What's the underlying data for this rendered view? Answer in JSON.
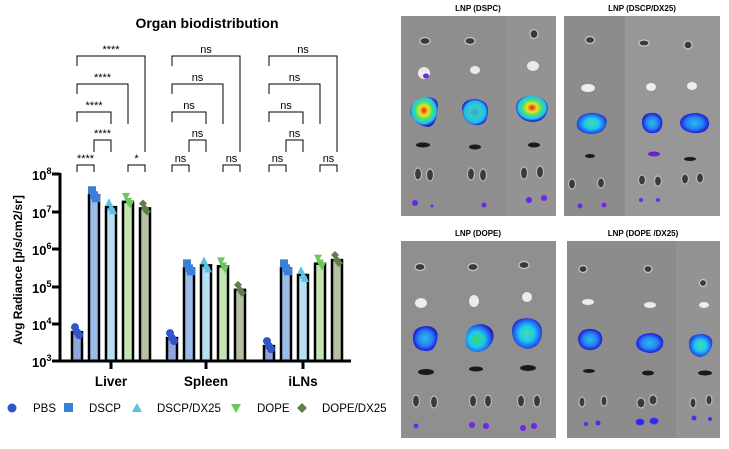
{
  "chart_data": [
    {
      "type": "bar",
      "title": "Organ biodistribution",
      "xlabel": "",
      "ylabel": "Avg Radiance [p/s/cm2/sr]",
      "yscale": "log",
      "ylim": [
        1000,
        100000000
      ],
      "yticks": [
        "10^3",
        "10^4",
        "10^5",
        "10^6",
        "10^7",
        "10^8"
      ],
      "categories": [
        "Liver",
        "Spleen",
        "iLNs"
      ],
      "series": [
        {
          "name": "PBS",
          "color": "#2f55c9",
          "bar_fill": "#8fa6db",
          "marker": "circle",
          "values": [
            5900,
            4100,
            2500
          ]
        },
        {
          "name": "DSCP",
          "color": "#3a7fd8",
          "bar_fill": "#9bbbe8",
          "marker": "square",
          "values": [
            27000000,
            300000,
            300000
          ]
        },
        {
          "name": "DSCP/DX25",
          "color": "#5bc3e0",
          "bar_fill": "#b7e0f2",
          "marker": "triangle-up",
          "values": [
            13000000,
            360000,
            200000
          ]
        },
        {
          "name": "DOPE",
          "color": "#6cc75c",
          "bar_fill": "#c4e4b4",
          "marker": "triangle-down",
          "values": [
            18000000,
            340000,
            400000
          ]
        },
        {
          "name": "DOPE/DX25",
          "color": "#5e7f4a",
          "bar_fill": "#b4bfa4",
          "marker": "diamond",
          "values": [
            12000000,
            80000,
            500000
          ]
        }
      ],
      "significance": {
        "Liver": [
          {
            "pair": [
              "PBS",
              "DSCP"
            ],
            "label": "****"
          },
          {
            "pair": [
              "DOPE",
              "DOPE/DX25"
            ],
            "label": "*"
          },
          {
            "pair": [
              "DSCP",
              "DSCP/DX25"
            ],
            "label": "****"
          },
          {
            "pair": [
              "PBS",
              "DSCP/DX25"
            ],
            "label": "****"
          },
          {
            "pair": [
              "PBS",
              "DOPE"
            ],
            "label": "****"
          },
          {
            "pair": [
              "PBS",
              "DOPE/DX25"
            ],
            "label": "****"
          }
        ],
        "Spleen": [
          {
            "pair": [
              "PBS",
              "DSCP"
            ],
            "label": "ns"
          },
          {
            "pair": [
              "DOPE",
              "DOPE/DX25"
            ],
            "label": "ns"
          },
          {
            "pair": [
              "DSCP",
              "DSCP/DX25"
            ],
            "label": "ns"
          },
          {
            "pair": [
              "PBS",
              "DSCP/DX25"
            ],
            "label": "ns"
          },
          {
            "pair": [
              "PBS",
              "DOPE"
            ],
            "label": "ns"
          },
          {
            "pair": [
              "PBS",
              "DOPE/DX25"
            ],
            "label": "ns"
          }
        ],
        "iLNs": [
          {
            "pair": [
              "PBS",
              "DSCP"
            ],
            "label": "ns"
          },
          {
            "pair": [
              "DOPE",
              "DOPE/DX25"
            ],
            "label": "ns"
          },
          {
            "pair": [
              "DSCP",
              "DSCP/DX25"
            ],
            "label": "ns"
          },
          {
            "pair": [
              "PBS",
              "DSCP/DX25"
            ],
            "label": "ns"
          },
          {
            "pair": [
              "PBS",
              "DOPE"
            ],
            "label": "ns"
          },
          {
            "pair": [
              "PBS",
              "DOPE/DX25"
            ],
            "label": "ns"
          }
        ]
      },
      "legend": {
        "position": "bottom",
        "entries": [
          "PBS",
          "DSCP",
          "DSCP/DX25",
          "DOPE",
          "DOPE/DX25"
        ]
      },
      "grid": false
    }
  ],
  "chart": {
    "title": "Organ biodistribution",
    "ylabel": "Avg Radiance [p/s/cm2/sr]",
    "categories": [
      "Liver",
      "Spleen",
      "iLNs"
    ],
    "ytick_base": "10",
    "ytick_exps": [
      "3",
      "4",
      "5",
      "6",
      "7",
      "8"
    ],
    "legend": [
      "PBS",
      "DSCP",
      "DSCP/DX25",
      "DOPE",
      "DOPE/DX25"
    ]
  },
  "panels": [
    {
      "title": "LNP (DSPC)"
    },
    {
      "title": "LNP (DSCP/DX25)"
    },
    {
      "title": "LNP (DOPE)"
    },
    {
      "title": "LNP (DOPE /DX25)"
    }
  ]
}
